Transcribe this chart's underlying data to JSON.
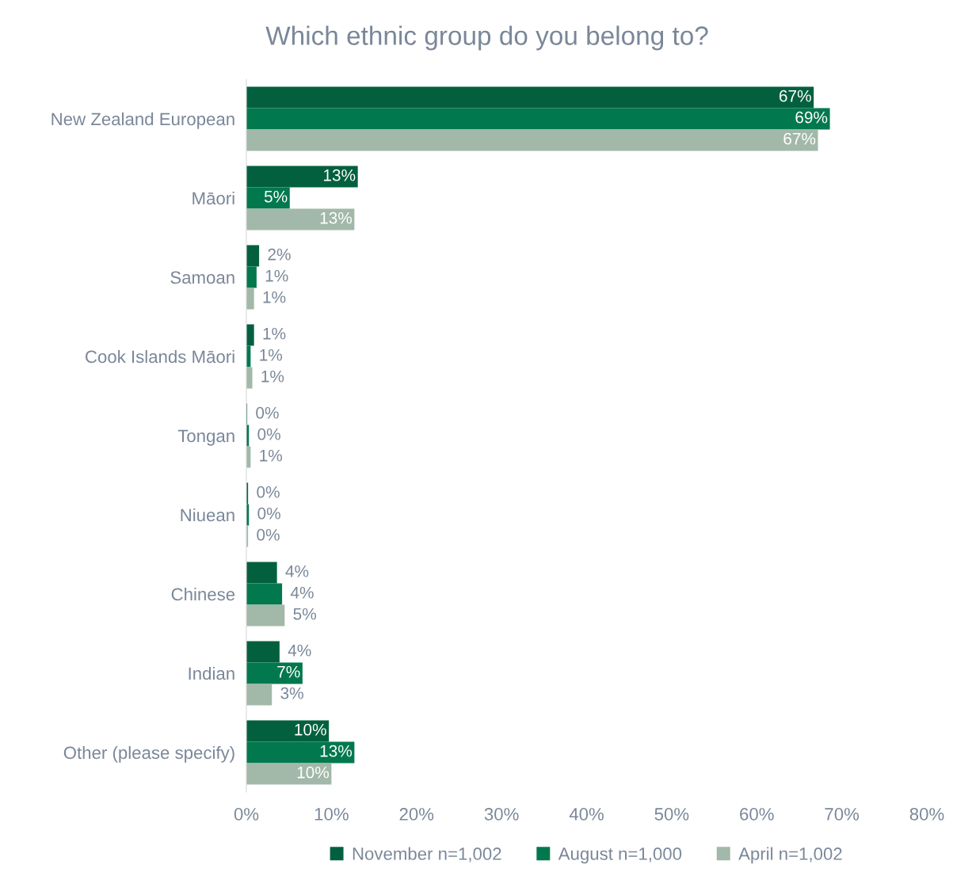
{
  "chart_data": {
    "type": "bar",
    "orientation": "horizontal",
    "title": "Which ethnic group do you belong to?",
    "categories": [
      "New Zealand European",
      "Māori",
      "Samoan",
      "Cook Islands Māori",
      "Tongan",
      "Niuean",
      "Chinese",
      "Indian",
      "Other (please specify)"
    ],
    "series": [
      {
        "name": "November n=1,002",
        "color": "#03603f",
        "values": [
          66.7,
          13.1,
          1.5,
          0.9,
          0.1,
          0.2,
          3.6,
          3.9,
          9.7
        ],
        "value_labels": [
          "67%",
          "13%",
          "2%",
          "1%",
          "0%",
          "0%",
          "4%",
          "4%",
          "10%"
        ]
      },
      {
        "name": "August n=1,000",
        "color": "#02784e",
        "values": [
          68.6,
          5.1,
          1.2,
          0.5,
          0.3,
          0.3,
          4.2,
          6.6,
          12.7
        ],
        "value_labels": [
          "69%",
          "5%",
          "1%",
          "1%",
          "0%",
          "0%",
          "4%",
          "7%",
          "13%"
        ]
      },
      {
        "name": "April n=1,002",
        "color": "#a2b8a8",
        "values": [
          67.2,
          12.7,
          0.9,
          0.7,
          0.5,
          0.2,
          4.5,
          3.0,
          10.0
        ],
        "value_labels": [
          "67%",
          "13%",
          "1%",
          "1%",
          "1%",
          "0%",
          "5%",
          "3%",
          "10%"
        ]
      }
    ],
    "xlim": [
      0,
      80
    ],
    "xticks": [
      {
        "value": 0,
        "label": "0%"
      },
      {
        "value": 10,
        "label": "10%"
      },
      {
        "value": 20,
        "label": "20%"
      },
      {
        "value": 30,
        "label": "30%"
      },
      {
        "value": 40,
        "label": "40%"
      },
      {
        "value": 50,
        "label": "50%"
      },
      {
        "value": 60,
        "label": "60%"
      },
      {
        "value": 70,
        "label": "70%"
      },
      {
        "value": 80,
        "label": "80%"
      }
    ],
    "grid": false,
    "legend": "bottom"
  }
}
